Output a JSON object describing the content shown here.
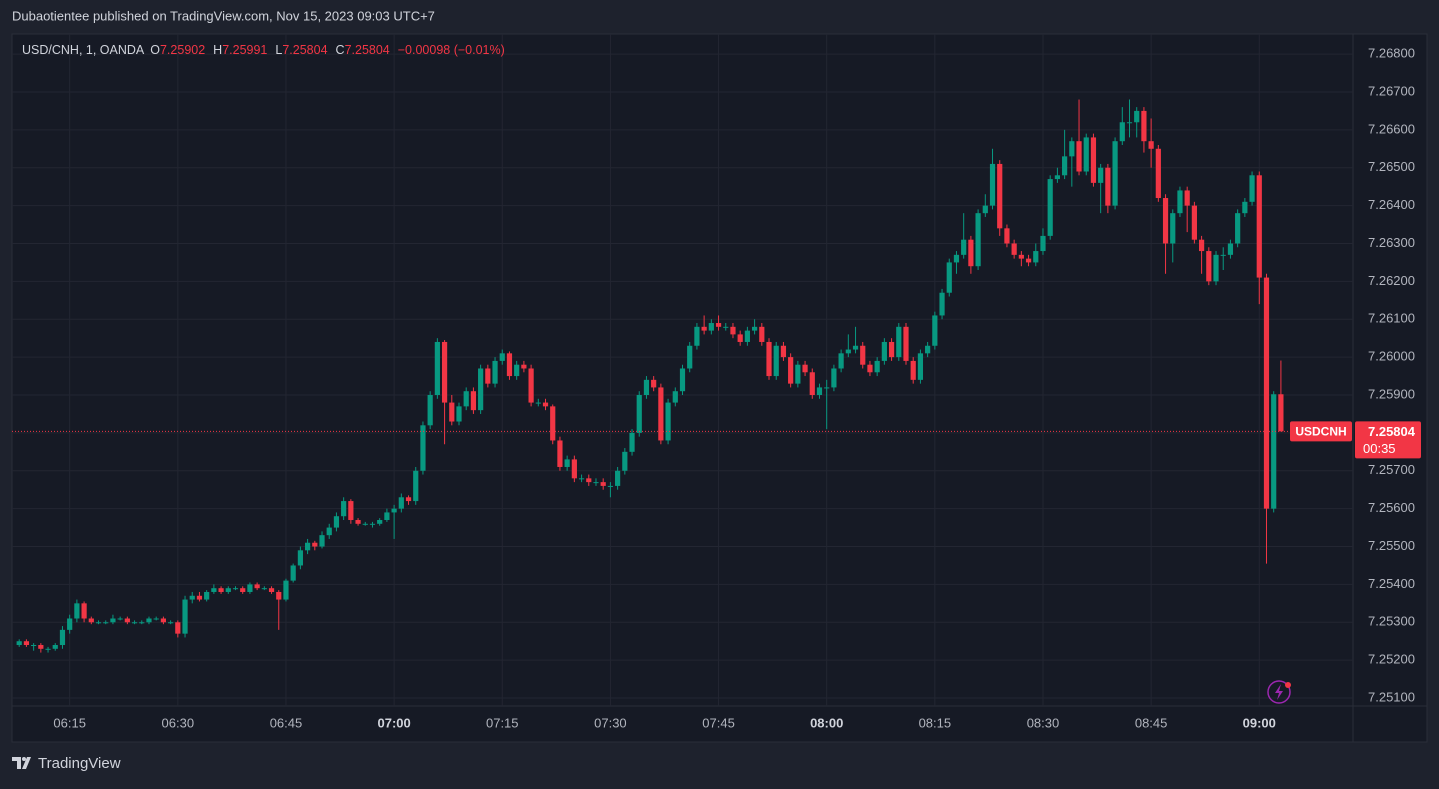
{
  "header": {
    "text": "Dubaotientee published on TradingView.com, Nov 15, 2023 09:03 UTC+7"
  },
  "footer": {
    "brand": "TradingView"
  },
  "chart_data": {
    "type": "candlestick",
    "legend": {
      "symbol": "USD/CNH, 1, OANDA",
      "fields": [
        {
          "key": "O",
          "value": 7.25902
        },
        {
          "key": "H",
          "value": 7.25991
        },
        {
          "key": "L",
          "value": 7.25804
        },
        {
          "key": "C",
          "value": 7.25804
        }
      ],
      "change": "−0.00098 (−0.01%)"
    },
    "last_price": {
      "name": "USDCNH",
      "value": 7.25804,
      "countdown": "00:35"
    },
    "up_color": "#089981",
    "down_color": "#f23645",
    "grid": true,
    "xlim": [
      "06:07",
      "09:13"
    ],
    "xticks": [
      "06:15",
      "06:30",
      "06:45",
      "07:00",
      "07:15",
      "07:30",
      "07:45",
      "08:00",
      "08:15",
      "08:30",
      "08:45",
      "09:00"
    ],
    "ylim": [
      7.25079,
      7.26853
    ],
    "yticks": [
      {
        "value": 7.251,
        "label": "7.25100"
      },
      {
        "value": 7.252,
        "label": "7.25200"
      },
      {
        "value": 7.253,
        "label": "7.25300"
      },
      {
        "value": 7.254,
        "label": "7.25400"
      },
      {
        "value": 7.255,
        "label": "7.25500"
      },
      {
        "value": 7.256,
        "label": "7.25600"
      },
      {
        "value": 7.257,
        "label": "7.25700"
      },
      {
        "value": 7.258,
        "label": "7.25800"
      },
      {
        "value": 7.259,
        "label": "7.25900"
      },
      {
        "value": 7.26,
        "label": "7.26000"
      },
      {
        "value": 7.261,
        "label": "7.26100"
      },
      {
        "value": 7.262,
        "label": "7.26200"
      },
      {
        "value": 7.263,
        "label": "7.26300"
      },
      {
        "value": 7.264,
        "label": "7.26400"
      },
      {
        "value": 7.265,
        "label": "7.26500"
      },
      {
        "value": 7.266,
        "label": "7.26600"
      },
      {
        "value": 7.267,
        "label": "7.26700"
      },
      {
        "value": 7.268,
        "label": "7.26800"
      }
    ],
    "x": [
      "06:08",
      "06:09",
      "06:10",
      "06:11",
      "06:12",
      "06:13",
      "06:14",
      "06:15",
      "06:16",
      "06:17",
      "06:18",
      "06:19",
      "06:20",
      "06:21",
      "06:22",
      "06:23",
      "06:24",
      "06:25",
      "06:26",
      "06:27",
      "06:28",
      "06:29",
      "06:30",
      "06:31",
      "06:32",
      "06:33",
      "06:34",
      "06:35",
      "06:36",
      "06:37",
      "06:38",
      "06:39",
      "06:40",
      "06:41",
      "06:42",
      "06:43",
      "06:44",
      "06:45",
      "06:46",
      "06:47",
      "06:48",
      "06:49",
      "06:50",
      "06:51",
      "06:52",
      "06:53",
      "06:54",
      "06:55",
      "06:56",
      "06:57",
      "06:58",
      "06:59",
      "07:00",
      "07:01",
      "07:02",
      "07:03",
      "07:04",
      "07:05",
      "07:06",
      "07:07",
      "07:08",
      "07:09",
      "07:10",
      "07:11",
      "07:12",
      "07:13",
      "07:14",
      "07:15",
      "07:16",
      "07:17",
      "07:18",
      "07:19",
      "07:20",
      "07:21",
      "07:22",
      "07:23",
      "07:24",
      "07:25",
      "07:26",
      "07:27",
      "07:28",
      "07:29",
      "07:30",
      "07:31",
      "07:32",
      "07:33",
      "07:34",
      "07:35",
      "07:36",
      "07:37",
      "07:38",
      "07:39",
      "07:40",
      "07:41",
      "07:42",
      "07:43",
      "07:44",
      "07:45",
      "07:46",
      "07:47",
      "07:48",
      "07:49",
      "07:50",
      "07:51",
      "07:52",
      "07:53",
      "07:54",
      "07:55",
      "07:56",
      "07:57",
      "07:58",
      "07:59",
      "08:00",
      "08:01",
      "08:02",
      "08:03",
      "08:04",
      "08:05",
      "08:06",
      "08:07",
      "08:08",
      "08:09",
      "08:10",
      "08:11",
      "08:12",
      "08:13",
      "08:14",
      "08:15",
      "08:16",
      "08:17",
      "08:18",
      "08:19",
      "08:20",
      "08:21",
      "08:22",
      "08:23",
      "08:24",
      "08:25",
      "08:26",
      "08:27",
      "08:28",
      "08:29",
      "08:30",
      "08:31",
      "08:32",
      "08:33",
      "08:34",
      "08:35",
      "08:36",
      "08:37",
      "08:38",
      "08:39",
      "08:40",
      "08:41",
      "08:42",
      "08:43",
      "08:44",
      "08:45",
      "08:46",
      "08:47",
      "08:48",
      "08:49",
      "08:50",
      "08:51",
      "08:52",
      "08:53",
      "08:54",
      "08:55",
      "08:56",
      "08:57",
      "08:58",
      "08:59",
      "09:00",
      "09:01",
      "09:02",
      "09:03"
    ],
    "ohlc": [
      [
        7.2524,
        7.25255,
        7.25235,
        7.2525
      ],
      [
        7.2525,
        7.25255,
        7.25235,
        7.2524
      ],
      [
        7.2524,
        7.25245,
        7.25225,
        7.2524
      ],
      [
        7.2524,
        7.25245,
        7.2522,
        7.2523
      ],
      [
        7.2523,
        7.25235,
        7.2522,
        7.2523
      ],
      [
        7.2523,
        7.25245,
        7.25225,
        7.2524
      ],
      [
        7.2524,
        7.2529,
        7.2523,
        7.2528
      ],
      [
        7.2528,
        7.2532,
        7.2527,
        7.2531
      ],
      [
        7.2531,
        7.2536,
        7.253,
        7.2535
      ],
      [
        7.2535,
        7.25355,
        7.253,
        7.2531
      ],
      [
        7.2531,
        7.25315,
        7.25295,
        7.253
      ],
      [
        7.253,
        7.25305,
        7.25295,
        7.253
      ],
      [
        7.253,
        7.25305,
        7.25295,
        7.253
      ],
      [
        7.253,
        7.2532,
        7.25295,
        7.2531
      ],
      [
        7.2531,
        7.25315,
        7.25305,
        7.2531
      ],
      [
        7.2531,
        7.25315,
        7.25295,
        7.253
      ],
      [
        7.253,
        7.25305,
        7.25295,
        7.253
      ],
      [
        7.253,
        7.25305,
        7.25295,
        7.253
      ],
      [
        7.253,
        7.25315,
        7.25295,
        7.2531
      ],
      [
        7.2531,
        7.25315,
        7.25305,
        7.2531
      ],
      [
        7.2531,
        7.25315,
        7.25295,
        7.253
      ],
      [
        7.253,
        7.25305,
        7.25295,
        7.253
      ],
      [
        7.253,
        7.25305,
        7.2526,
        7.2527
      ],
      [
        7.2527,
        7.2537,
        7.2526,
        7.2536
      ],
      [
        7.2536,
        7.2538,
        7.2535,
        7.2537
      ],
      [
        7.2537,
        7.2538,
        7.25355,
        7.2536
      ],
      [
        7.2536,
        7.25385,
        7.25355,
        7.2538
      ],
      [
        7.2538,
        7.254,
        7.25375,
        7.2539
      ],
      [
        7.2539,
        7.25395,
        7.25375,
        7.2538
      ],
      [
        7.2538,
        7.25395,
        7.25375,
        7.2539
      ],
      [
        7.2539,
        7.25395,
        7.25385,
        7.2539
      ],
      [
        7.2539,
        7.25395,
        7.25375,
        7.2538
      ],
      [
        7.2538,
        7.25405,
        7.25375,
        7.254
      ],
      [
        7.254,
        7.25405,
        7.25385,
        7.2539
      ],
      [
        7.2539,
        7.25395,
        7.25385,
        7.2539
      ],
      [
        7.2539,
        7.25395,
        7.25375,
        7.2538
      ],
      [
        7.2538,
        7.25385,
        7.2528,
        7.2536
      ],
      [
        7.2536,
        7.25415,
        7.25355,
        7.2541
      ],
      [
        7.2541,
        7.25455,
        7.25405,
        7.2545
      ],
      [
        7.2545,
        7.255,
        7.2544,
        7.2549
      ],
      [
        7.2549,
        7.2552,
        7.2548,
        7.2551
      ],
      [
        7.2551,
        7.25515,
        7.2549,
        7.255
      ],
      [
        7.255,
        7.2554,
        7.25495,
        7.2553
      ],
      [
        7.2553,
        7.2556,
        7.2552,
        7.2555
      ],
      [
        7.2555,
        7.2559,
        7.2554,
        7.2558
      ],
      [
        7.2558,
        7.2563,
        7.2557,
        7.2562
      ],
      [
        7.2562,
        7.25625,
        7.2556,
        7.2557
      ],
      [
        7.2557,
        7.25575,
        7.25555,
        7.2556
      ],
      [
        7.2556,
        7.25565,
        7.25555,
        7.2556
      ],
      [
        7.2556,
        7.25565,
        7.2555,
        7.2556
      ],
      [
        7.2556,
        7.25575,
        7.25555,
        7.2557
      ],
      [
        7.2557,
        7.256,
        7.25565,
        7.2559
      ],
      [
        7.2559,
        7.2561,
        7.2552,
        7.256
      ],
      [
        7.256,
        7.2564,
        7.2559,
        7.2563
      ],
      [
        7.2563,
        7.25635,
        7.2561,
        7.2562
      ],
      [
        7.2562,
        7.2571,
        7.2561,
        7.257
      ],
      [
        7.257,
        7.2583,
        7.2569,
        7.2582
      ],
      [
        7.2582,
        7.2591,
        7.2581,
        7.259
      ],
      [
        7.259,
        7.2605,
        7.2589,
        7.2604
      ],
      [
        7.2604,
        7.26045,
        7.2577,
        7.2588
      ],
      [
        7.2588,
        7.259,
        7.2582,
        7.2583
      ],
      [
        7.2583,
        7.2588,
        7.2582,
        7.2587
      ],
      [
        7.2587,
        7.2592,
        7.2586,
        7.2591
      ],
      [
        7.2591,
        7.2592,
        7.2585,
        7.2586
      ],
      [
        7.2586,
        7.2598,
        7.2585,
        7.2597
      ],
      [
        7.2597,
        7.2598,
        7.2592,
        7.2593
      ],
      [
        7.2593,
        7.26,
        7.2592,
        7.2599
      ],
      [
        7.2599,
        7.2602,
        7.2598,
        7.2601
      ],
      [
        7.2601,
        7.26015,
        7.2594,
        7.2595
      ],
      [
        7.2595,
        7.2599,
        7.2594,
        7.2598
      ],
      [
        7.2598,
        7.2599,
        7.2596,
        7.2597
      ],
      [
        7.2597,
        7.2598,
        7.2587,
        7.2588
      ],
      [
        7.2588,
        7.2589,
        7.2587,
        7.2588
      ],
      [
        7.2588,
        7.2589,
        7.2586,
        7.2587
      ],
      [
        7.2587,
        7.25875,
        7.2577,
        7.2578
      ],
      [
        7.2578,
        7.2579,
        7.257,
        7.2571
      ],
      [
        7.2571,
        7.2574,
        7.257,
        7.2573
      ],
      [
        7.2573,
        7.2574,
        7.2567,
        7.2568
      ],
      [
        7.2568,
        7.2569,
        7.2567,
        7.2568
      ],
      [
        7.2568,
        7.2569,
        7.2566,
        7.2567
      ],
      [
        7.2567,
        7.2568,
        7.2566,
        7.2567
      ],
      [
        7.2567,
        7.2568,
        7.2565,
        7.2566
      ],
      [
        7.2566,
        7.2567,
        7.2563,
        7.2566
      ],
      [
        7.2566,
        7.2571,
        7.2565,
        7.257
      ],
      [
        7.257,
        7.2576,
        7.2569,
        7.2575
      ],
      [
        7.2575,
        7.2581,
        7.2574,
        7.258
      ],
      [
        7.258,
        7.2591,
        7.2579,
        7.259
      ],
      [
        7.259,
        7.2595,
        7.2589,
        7.2594
      ],
      [
        7.2594,
        7.2595,
        7.2591,
        7.2592
      ],
      [
        7.2592,
        7.2593,
        7.2577,
        7.2578
      ],
      [
        7.2578,
        7.2589,
        7.2577,
        7.2588
      ],
      [
        7.2588,
        7.2592,
        7.2587,
        7.2591
      ],
      [
        7.2591,
        7.2598,
        7.259,
        7.2597
      ],
      [
        7.2597,
        7.2604,
        7.2596,
        7.2603
      ],
      [
        7.2603,
        7.2609,
        7.2602,
        7.2608
      ],
      [
        7.2608,
        7.2611,
        7.2606,
        7.2607
      ],
      [
        7.2607,
        7.261,
        7.2606,
        7.2609
      ],
      [
        7.2609,
        7.2611,
        7.2607,
        7.2608
      ],
      [
        7.2608,
        7.2609,
        7.2607,
        7.2608
      ],
      [
        7.2608,
        7.2609,
        7.2605,
        7.2606
      ],
      [
        7.2606,
        7.2607,
        7.2603,
        7.2604
      ],
      [
        7.2604,
        7.2608,
        7.2603,
        7.2607
      ],
      [
        7.2607,
        7.261,
        7.2606,
        7.2608
      ],
      [
        7.2608,
        7.2609,
        7.2603,
        7.2604
      ],
      [
        7.2604,
        7.2605,
        7.2594,
        7.2595
      ],
      [
        7.2595,
        7.2604,
        7.2594,
        7.2603
      ],
      [
        7.2603,
        7.2604,
        7.2599,
        7.26
      ],
      [
        7.26,
        7.2601,
        7.2592,
        7.2593
      ],
      [
        7.2593,
        7.2599,
        7.2592,
        7.2598
      ],
      [
        7.2598,
        7.2599,
        7.2595,
        7.2596
      ],
      [
        7.2596,
        7.2597,
        7.2589,
        7.259
      ],
      [
        7.259,
        7.2593,
        7.2589,
        7.2592
      ],
      [
        7.2592,
        7.2594,
        7.2581,
        7.2592
      ],
      [
        7.2592,
        7.2598,
        7.2591,
        7.2597
      ],
      [
        7.2597,
        7.2602,
        7.2596,
        7.2601
      ],
      [
        7.2601,
        7.2606,
        7.26,
        7.2602
      ],
      [
        7.2602,
        7.2608,
        7.2601,
        7.2603
      ],
      [
        7.2603,
        7.2604,
        7.2597,
        7.2598
      ],
      [
        7.2598,
        7.2599,
        7.2595,
        7.2596
      ],
      [
        7.2596,
        7.26,
        7.2595,
        7.2599
      ],
      [
        7.2599,
        7.2605,
        7.2598,
        7.2604
      ],
      [
        7.2604,
        7.2605,
        7.2599,
        7.26
      ],
      [
        7.26,
        7.2609,
        7.2599,
        7.2608
      ],
      [
        7.2608,
        7.2609,
        7.2598,
        7.2599
      ],
      [
        7.2599,
        7.26,
        7.2593,
        7.2594
      ],
      [
        7.2594,
        7.2602,
        7.2593,
        7.2601
      ],
      [
        7.2601,
        7.2604,
        7.26,
        7.2603
      ],
      [
        7.2603,
        7.2612,
        7.2602,
        7.2611
      ],
      [
        7.2611,
        7.2618,
        7.261,
        7.2617
      ],
      [
        7.2617,
        7.2626,
        7.2616,
        7.2625
      ],
      [
        7.2625,
        7.2628,
        7.2622,
        7.2627
      ],
      [
        7.2627,
        7.2638,
        7.2626,
        7.2631
      ],
      [
        7.2631,
        7.2632,
        7.2622,
        7.2624
      ],
      [
        7.2624,
        7.2639,
        7.2623,
        7.2638
      ],
      [
        7.2638,
        7.2643,
        7.2637,
        7.264
      ],
      [
        7.264,
        7.2655,
        7.2639,
        7.2651
      ],
      [
        7.2651,
        7.2652,
        7.2632,
        7.2634
      ],
      [
        7.2634,
        7.2635,
        7.2629,
        7.263
      ],
      [
        7.263,
        7.2631,
        7.2626,
        7.2627
      ],
      [
        7.2627,
        7.2628,
        7.2624,
        7.2626
      ],
      [
        7.2626,
        7.2627,
        7.2624,
        7.2625
      ],
      [
        7.2625,
        7.263,
        7.2624,
        7.2628
      ],
      [
        7.2628,
        7.2634,
        7.2627,
        7.2632
      ],
      [
        7.2632,
        7.2648,
        7.2631,
        7.2647
      ],
      [
        7.2647,
        7.265,
        7.2646,
        7.2648
      ],
      [
        7.2648,
        7.266,
        7.2647,
        7.2653
      ],
      [
        7.2653,
        7.2658,
        7.2645,
        7.2657
      ],
      [
        7.2657,
        7.2668,
        7.2648,
        7.2649
      ],
      [
        7.2649,
        7.2659,
        7.2648,
        7.2658
      ],
      [
        7.2658,
        7.2659,
        7.2645,
        7.2646
      ],
      [
        7.2646,
        7.2651,
        7.2638,
        7.265
      ],
      [
        7.265,
        7.2651,
        7.2638,
        7.264
      ],
      [
        7.264,
        7.2658,
        7.2639,
        7.2657
      ],
      [
        7.2657,
        7.2666,
        7.2656,
        7.2662
      ],
      [
        7.2662,
        7.2668,
        7.2658,
        7.2662
      ],
      [
        7.2662,
        7.2666,
        7.2658,
        7.2665
      ],
      [
        7.2665,
        7.2666,
        7.2654,
        7.2657
      ],
      [
        7.2657,
        7.2663,
        7.265,
        7.2655
      ],
      [
        7.2655,
        7.2656,
        7.2641,
        7.2642
      ],
      [
        7.2642,
        7.2643,
        7.2622,
        7.263
      ],
      [
        7.263,
        7.2639,
        7.2625,
        7.2638
      ],
      [
        7.2638,
        7.2645,
        7.2637,
        7.2644
      ],
      [
        7.2644,
        7.2645,
        7.2633,
        7.264
      ],
      [
        7.264,
        7.2641,
        7.263,
        7.2631
      ],
      [
        7.2631,
        7.2632,
        7.2622,
        7.2628
      ],
      [
        7.2628,
        7.2629,
        7.2619,
        7.262
      ],
      [
        7.262,
        7.2628,
        7.2619,
        7.2627
      ],
      [
        7.2627,
        7.2629,
        7.2623,
        7.2627
      ],
      [
        7.2627,
        7.2631,
        7.2626,
        7.263
      ],
      [
        7.263,
        7.2639,
        7.2629,
        7.2638
      ],
      [
        7.2638,
        7.2642,
        7.2637,
        7.2641
      ],
      [
        7.2641,
        7.2649,
        7.264,
        7.2648
      ],
      [
        7.2648,
        7.2649,
        7.2614,
        7.2621
      ],
      [
        7.2621,
        7.2622,
        7.25455,
        7.256
      ],
      [
        7.256,
        7.2591,
        7.2559,
        7.25902
      ],
      [
        7.25902,
        7.25991,
        7.25804,
        7.25804
      ]
    ]
  }
}
